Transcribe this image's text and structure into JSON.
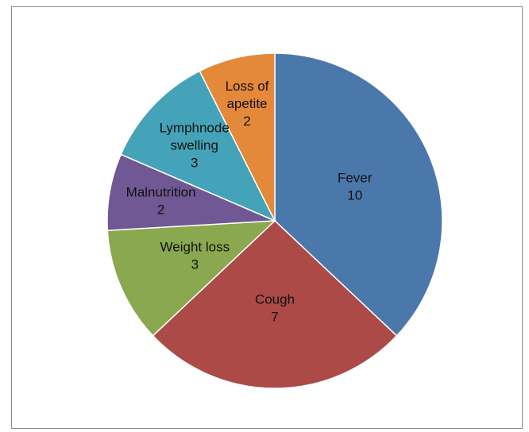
{
  "chart_data": {
    "type": "pie",
    "title": "",
    "slices": [
      {
        "label_lines": [
          "Fever"
        ],
        "value": 10,
        "value_text": "10",
        "color": "#4a78ab"
      },
      {
        "label_lines": [
          "Cough"
        ],
        "value": 7,
        "value_text": "7",
        "color": "#ab4a47"
      },
      {
        "label_lines": [
          "Weight loss"
        ],
        "value": 3,
        "value_text": "3",
        "color": "#89a84f"
      },
      {
        "label_lines": [
          "Malnutrition"
        ],
        "value": 2,
        "value_text": "2",
        "color": "#6f5893"
      },
      {
        "label_lines": [
          "Lymphnode",
          "swelling"
        ],
        "value": 3,
        "value_text": "3",
        "color": "#44a3b9"
      },
      {
        "label_lines": [
          "Loss of",
          "apetite"
        ],
        "value": 2,
        "value_text": "2",
        "color": "#e4883a"
      }
    ]
  }
}
